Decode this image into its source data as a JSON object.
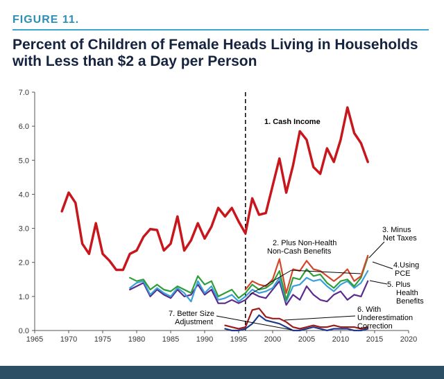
{
  "figure_label": "FIGURE 11.",
  "colors": {
    "accent": "#39a6d0",
    "title": "#16233f",
    "footer_bar": "#2c4f66"
  },
  "chart_data": {
    "type": "line",
    "title": "Percent of Children of Female Heads Living in Households with Less than $2 a Day per Person",
    "xlabel": "",
    "ylabel": "",
    "xlim": [
      1965,
      2020
    ],
    "ylim": [
      0,
      7
    ],
    "x_ticks": [
      "1965",
      "1970",
      "1975",
      "1980",
      "1985",
      "1990",
      "1995",
      "2000",
      "2005",
      "2010",
      "2015",
      "2020"
    ],
    "y_ticks": [
      "0.0",
      "1.0",
      "2.0",
      "3.0",
      "4.0",
      "5.0",
      "6.0",
      "7.0"
    ],
    "vertical_line": 1996,
    "series": [
      {
        "name": "1. Cash Income",
        "color": "#c8161d",
        "x": [
          1969,
          1970,
          1971,
          1972,
          1973,
          1974,
          1975,
          1976,
          1977,
          1978,
          1979,
          1980,
          1981,
          1982,
          1983,
          1984,
          1985,
          1986,
          1987,
          1988,
          1989,
          1990,
          1991,
          1992,
          1993,
          1994,
          1995,
          1996,
          1997,
          1998,
          1999,
          2000,
          2001,
          2002,
          2003,
          2004,
          2005,
          2006,
          2007,
          2008,
          2009,
          2010,
          2011,
          2012,
          2013,
          2014
        ],
        "values": [
          3.5,
          4.05,
          3.75,
          2.55,
          2.25,
          3.15,
          2.25,
          2.05,
          1.78,
          1.78,
          2.25,
          2.35,
          2.75,
          2.98,
          2.95,
          2.35,
          2.55,
          3.35,
          2.35,
          2.65,
          3.15,
          2.7,
          3.05,
          3.6,
          3.35,
          3.6,
          3.2,
          2.85,
          3.88,
          3.4,
          3.45,
          4.25,
          5.05,
          4.05,
          4.85,
          5.85,
          5.6,
          4.8,
          4.6,
          5.35,
          4.95,
          5.6,
          6.55,
          5.8,
          5.5,
          4.95
        ]
      },
      {
        "name": "2. Plus Non-Health Non-Cash Benefits",
        "color": "#d2462a",
        "x": [
          1996,
          1997,
          1998,
          1999,
          2000,
          2001,
          2002,
          2003,
          2004,
          2005,
          2006,
          2007,
          2008,
          2009,
          2010,
          2011,
          2012,
          2013,
          2014
        ],
        "values": [
          1.2,
          1.45,
          1.35,
          1.3,
          1.5,
          2.1,
          1.1,
          1.8,
          1.75,
          2.05,
          1.8,
          1.75,
          1.6,
          1.45,
          1.6,
          1.8,
          1.45,
          1.6,
          2.2
        ]
      },
      {
        "name": "3. Minus Net Taxes",
        "color": "#2e9e3a",
        "x": [
          1979,
          1980,
          1981,
          1982,
          1983,
          1984,
          1985,
          1986,
          1987,
          1988,
          1989,
          1990,
          1991,
          1992,
          1993,
          1994,
          1995,
          1996,
          1997,
          1998,
          1999,
          2000,
          2001,
          2002,
          2003,
          2004,
          2005,
          2006,
          2007,
          2008,
          2009,
          2010,
          2011,
          2012,
          2013,
          2014
        ],
        "values": [
          1.55,
          1.45,
          1.5,
          1.2,
          1.35,
          1.2,
          1.15,
          1.3,
          1.2,
          1.1,
          1.6,
          1.35,
          1.45,
          1.0,
          1.1,
          1.2,
          0.95,
          1.1,
          1.35,
          1.2,
          1.25,
          1.4,
          1.75,
          0.9,
          1.55,
          1.5,
          1.8,
          1.6,
          1.65,
          1.4,
          1.25,
          1.45,
          1.5,
          1.3,
          1.55,
          2.15
        ]
      },
      {
        "name": "4. Using PCE",
        "color": "#3a9fd8",
        "x": [
          1979,
          1980,
          1981,
          1982,
          1983,
          1984,
          1985,
          1986,
          1987,
          1988,
          1989,
          1990,
          1991,
          1992,
          1993,
          1994,
          1995,
          1996,
          1997,
          1998,
          1999,
          2000,
          2001,
          2002,
          2003,
          2004,
          2005,
          2006,
          2007,
          2008,
          2009,
          2010,
          2011,
          2012,
          2013,
          2014
        ],
        "values": [
          1.25,
          1.4,
          1.45,
          1.05,
          1.25,
          1.1,
          1.0,
          1.25,
          1.1,
          0.85,
          1.45,
          1.1,
          1.3,
          0.9,
          0.95,
          1.05,
          0.85,
          1.0,
          1.2,
          1.1,
          1.15,
          1.25,
          1.55,
          0.85,
          1.3,
          1.35,
          1.55,
          1.45,
          1.5,
          1.3,
          1.15,
          1.35,
          1.45,
          1.25,
          1.4,
          1.75
        ]
      },
      {
        "name": "5. Plus Health Benefits",
        "color": "#5a2a8c",
        "x": [
          1979,
          1980,
          1981,
          1982,
          1983,
          1984,
          1985,
          1986,
          1987,
          1988,
          1989,
          1990,
          1991,
          1992,
          1993,
          1994,
          1995,
          1996,
          1997,
          1998,
          1999,
          2000,
          2001,
          2002,
          2003,
          2004,
          2005,
          2006,
          2007,
          2008,
          2009,
          2010,
          2011,
          2012,
          2013,
          2014
        ],
        "values": [
          1.2,
          1.3,
          1.4,
          1.0,
          1.2,
          1.05,
          0.95,
          1.2,
          1.0,
          1.05,
          1.35,
          1.05,
          1.2,
          0.8,
          0.8,
          0.9,
          0.8,
          0.9,
          1.1,
          1.0,
          0.95,
          1.2,
          1.45,
          0.75,
          1.05,
          0.9,
          1.3,
          1.05,
          0.9,
          0.85,
          1.05,
          1.15,
          0.9,
          1.05,
          1.0,
          1.45
        ]
      },
      {
        "name": "6. With Underestimation Correction",
        "color": "#9e1a1a",
        "x": [
          1993,
          1994,
          1995,
          1996,
          1997,
          1998,
          1999,
          2000,
          2001,
          2002,
          2003,
          2004,
          2005,
          2006,
          2007,
          2008,
          2009,
          2010,
          2011,
          2012,
          2013,
          2014
        ],
        "values": [
          0.15,
          0.1,
          0.05,
          0.1,
          0.6,
          0.65,
          0.4,
          0.35,
          0.35,
          0.25,
          0.1,
          0.05,
          0.1,
          0.15,
          0.1,
          0.1,
          0.15,
          0.1,
          0.1,
          0.1,
          0.05,
          0.1
        ]
      },
      {
        "name": "7. Better Size Adjustment",
        "color": "#1f3a8a",
        "x": [
          1993,
          1994,
          1995,
          1996,
          1997,
          1998,
          1999,
          2000,
          2001,
          2002,
          2003,
          2004,
          2005,
          2006,
          2007,
          2008,
          2009,
          2010,
          2011,
          2012,
          2013,
          2014
        ],
        "values": [
          0.05,
          0.0,
          0.0,
          0.05,
          0.2,
          0.45,
          0.3,
          0.25,
          0.2,
          0.1,
          0.0,
          0.0,
          0.05,
          0.1,
          0.05,
          0.0,
          0.05,
          0.05,
          0.05,
          0.0,
          0.0,
          0.05
        ]
      }
    ],
    "annotations": [
      "1. Cash Income",
      "2. Plus Non-Health",
      "Non-Cash Benefits",
      "3. Minus",
      "Net Taxes",
      "4.Using",
      "PCE",
      "5. Plus",
      "Health",
      "Benefits",
      "6. With",
      "Underestimation",
      "Correction",
      "7. Better Size",
      "Adjustment"
    ]
  }
}
